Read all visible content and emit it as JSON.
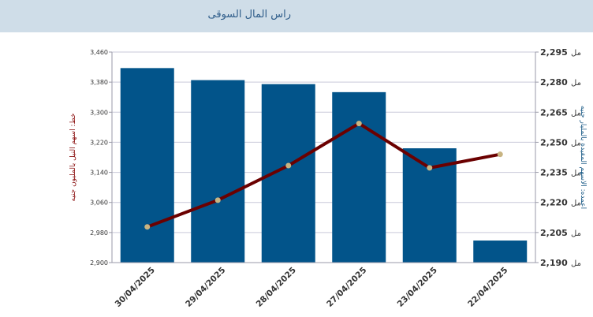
{
  "header": {
    "title": "راس المال السوقى"
  },
  "chart_data": {
    "type": "bar+line",
    "categories": [
      "30/04/2025",
      "29/04/2025",
      "28/04/2025",
      "27/04/2025",
      "23/04/2025",
      "22/04/2025"
    ],
    "series": [
      {
        "type": "bar",
        "axis": "right",
        "values": [
          2287,
          2281,
          2279,
          2275,
          2247,
          2201
        ],
        "color": "#02548a"
      },
      {
        "type": "line",
        "axis": "left",
        "values": [
          2995,
          3066,
          3158,
          3270,
          3152,
          3188
        ],
        "color": "#6b0000",
        "marker_color": "#c8b482"
      }
    ],
    "left_axis": {
      "title": "خط: اسهم النيل بالمليون جنيه",
      "ylim": [
        2900,
        3460
      ],
      "ticks": [
        "2,900",
        "2,980",
        "3,060",
        "3,140",
        "3,220",
        "3,300",
        "3,380",
        "3,460"
      ],
      "unit": "مل"
    },
    "right_axis": {
      "title": "اعمده: الاسهم المقيدة بالمليار جنيه",
      "ylim": [
        2190,
        2295
      ],
      "ticks": [
        "2,190",
        "2,205",
        "2,220",
        "2,235",
        "2,250",
        "2,265",
        "2,280",
        "2,295"
      ],
      "unit": "مل"
    },
    "grid": true
  }
}
